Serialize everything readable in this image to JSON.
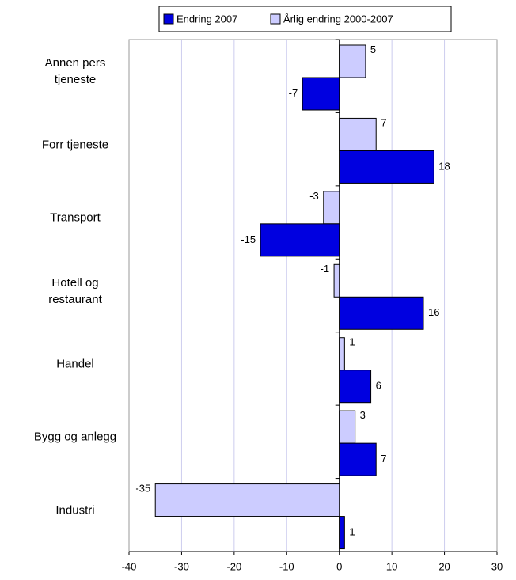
{
  "chart_data": {
    "type": "hbar",
    "categories": [
      "Annen pers\ntjeneste",
      "Forr tjeneste",
      "Transport",
      "Hotell og\nrestaurant",
      "Handel",
      "Bygg og anlegg",
      "Industri"
    ],
    "series": [
      {
        "name": "Endring 2007",
        "color": "#0000e0",
        "values": [
          -7,
          18,
          -15,
          16,
          6,
          7,
          1
        ]
      },
      {
        "name": "Årlig endring 2000-2007",
        "color": "#ccccff",
        "values": [
          5,
          7,
          -3,
          -1,
          1,
          3,
          -35
        ]
      }
    ],
    "xlim": [
      -40,
      30
    ],
    "xticks": [
      -40,
      -30,
      -20,
      -10,
      0,
      10,
      20,
      30
    ],
    "grid": true
  }
}
